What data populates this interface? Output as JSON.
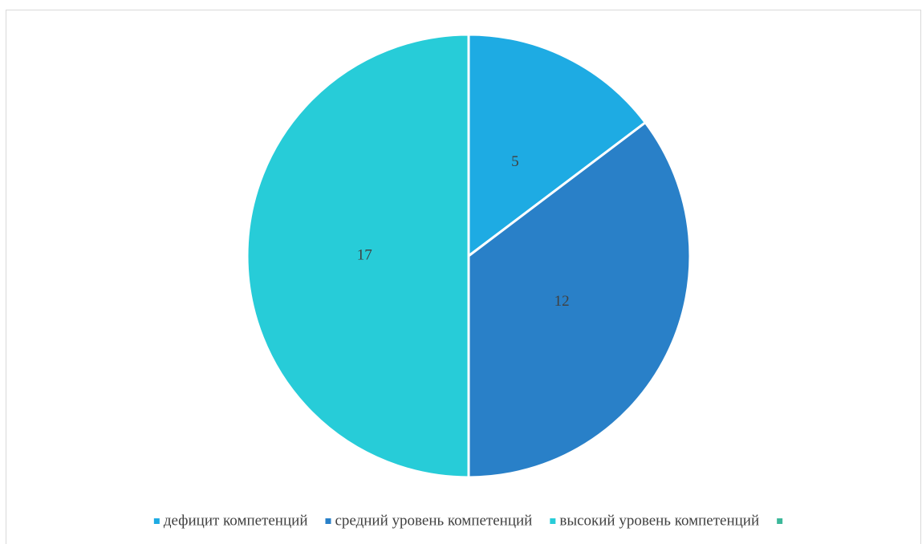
{
  "chart_data": {
    "type": "pie",
    "categories": [
      "дефицит компетенций",
      "средний уровень компетенций",
      "высокий уровень компетенций",
      null
    ],
    "values": [
      5,
      12,
      17,
      null
    ],
    "colors": [
      "#1eabe3",
      "#2980c8",
      "#27ccd8",
      "#3cb89a"
    ],
    "legend": "bottom"
  }
}
